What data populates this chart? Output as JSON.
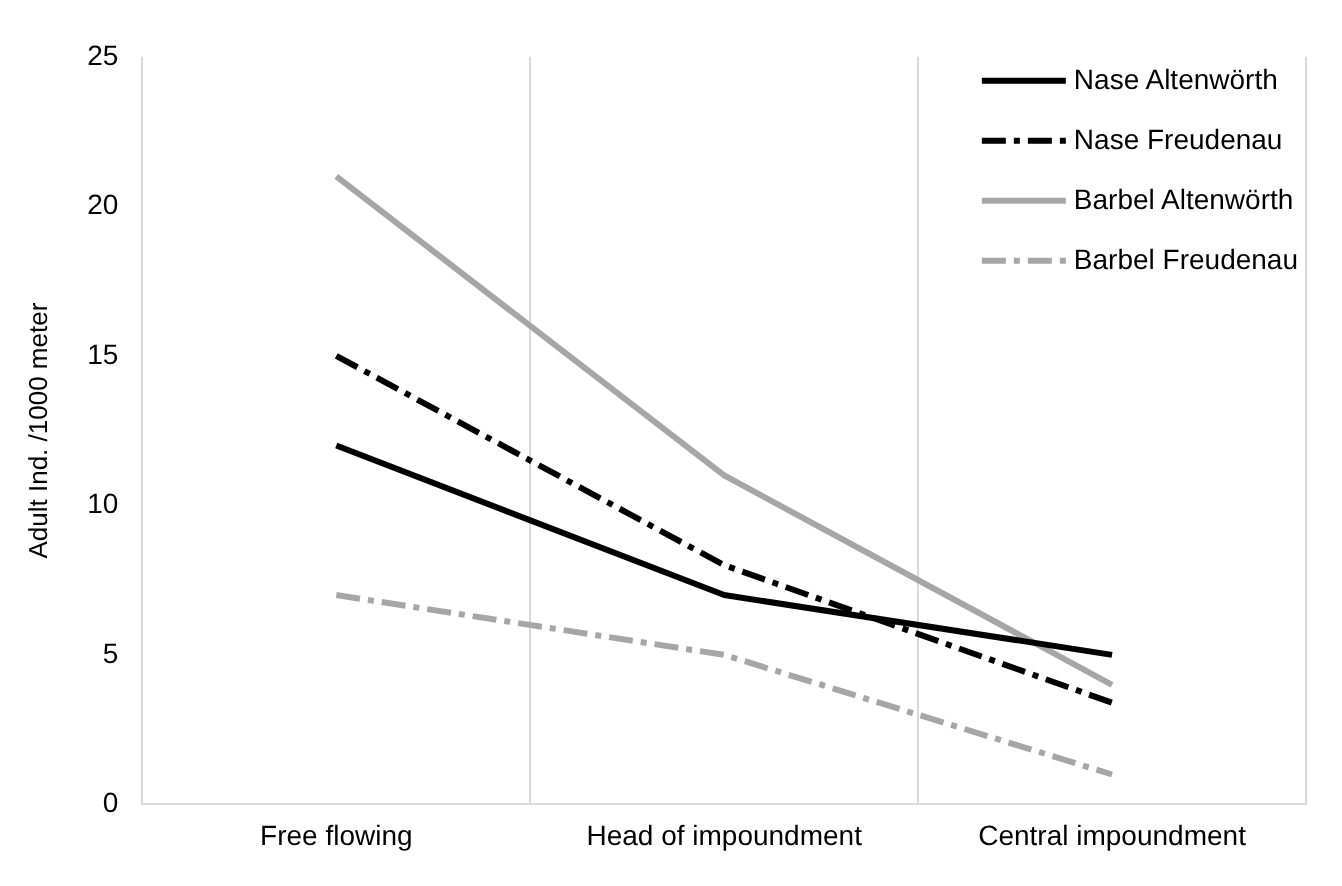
{
  "chart_data": {
    "type": "line",
    "ylabel": "Adult Ind. /1000 meter",
    "categories": [
      "Free flowing",
      "Head of impoundment",
      "Central impoundment"
    ],
    "series": [
      {
        "name": "Nase Altenwörth",
        "color": "#000000",
        "line_style": "solid",
        "values": [
          12,
          7,
          5
        ]
      },
      {
        "name": "Nase Freudenau",
        "color": "#000000",
        "line_style": "dashed",
        "values": [
          15,
          8,
          3.4
        ]
      },
      {
        "name": "Barbel Altenwörth",
        "color": "#a6a6a6",
        "line_style": "solid",
        "values": [
          21,
          11,
          4
        ]
      },
      {
        "name": "Barbel Freudenau",
        "color": "#a6a6a6",
        "line_style": "dashed",
        "values": [
          7,
          5,
          1
        ]
      }
    ],
    "ylim": [
      0,
      25
    ],
    "yticks": [
      0,
      5,
      10,
      15,
      20,
      25
    ],
    "grid": "x",
    "legend": "top right",
    "marker": "none"
  }
}
